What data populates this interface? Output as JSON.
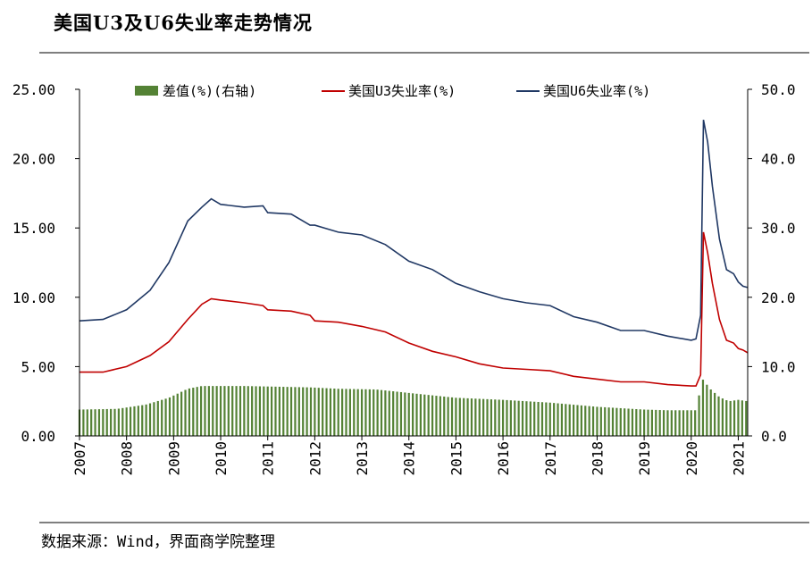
{
  "header": {
    "title": "美国U3及U6失业率走势情况"
  },
  "footer": {
    "source": "数据来源：Wind，界面商学院整理"
  },
  "colors": {
    "bar": "#548235",
    "u3": "#c00000",
    "u6": "#203864",
    "axis": "#000000",
    "rule": "#7f7f7f"
  },
  "chart_data": {
    "type": "line+bar",
    "x_ticks": [
      "2007",
      "2008",
      "2009",
      "2010",
      "2011",
      "2012",
      "2013",
      "2014",
      "2015",
      "2016",
      "2017",
      "2018",
      "2019",
      "2020",
      "2021"
    ],
    "x_range": [
      2007.0,
      2021.2
    ],
    "left_axis": {
      "ylim": [
        0,
        25
      ],
      "tick_labels": [
        "0.00",
        "5.00",
        "10.00",
        "15.00",
        "20.00",
        "25.00"
      ]
    },
    "right_axis": {
      "ylim": [
        0,
        50
      ],
      "tick_labels": [
        "0.0",
        "10.0",
        "20.0",
        "30.0",
        "40.0",
        "50.0"
      ]
    },
    "legend": {
      "bar_label": "差值(%)(右轴)",
      "u3_label": "美国U3失业率(%)",
      "u6_label": "美国U6失业率(%)"
    },
    "u3_series": {
      "name": "美国U3失业率(%)",
      "axis": "left",
      "points": [
        [
          2007.0,
          4.6
        ],
        [
          2007.5,
          4.6
        ],
        [
          2008.0,
          5.0
        ],
        [
          2008.5,
          5.8
        ],
        [
          2008.9,
          6.8
        ],
        [
          2009.3,
          8.4
        ],
        [
          2009.6,
          9.5
        ],
        [
          2009.8,
          9.9
        ],
        [
          2010.0,
          9.8
        ],
        [
          2010.5,
          9.6
        ],
        [
          2010.9,
          9.4
        ],
        [
          2011.0,
          9.1
        ],
        [
          2011.5,
          9.0
        ],
        [
          2011.9,
          8.7
        ],
        [
          2012.0,
          8.3
        ],
        [
          2012.5,
          8.2
        ],
        [
          2013.0,
          7.9
        ],
        [
          2013.5,
          7.5
        ],
        [
          2014.0,
          6.7
        ],
        [
          2014.5,
          6.1
        ],
        [
          2015.0,
          5.7
        ],
        [
          2015.5,
          5.2
        ],
        [
          2016.0,
          4.9
        ],
        [
          2016.5,
          4.8
        ],
        [
          2017.0,
          4.7
        ],
        [
          2017.5,
          4.3
        ],
        [
          2018.0,
          4.1
        ],
        [
          2018.5,
          3.9
        ],
        [
          2019.0,
          3.9
        ],
        [
          2019.5,
          3.7
        ],
        [
          2020.0,
          3.6
        ],
        [
          2020.1,
          3.6
        ],
        [
          2020.2,
          4.4
        ],
        [
          2020.26,
          14.7
        ],
        [
          2020.35,
          13.2
        ],
        [
          2020.45,
          11.0
        ],
        [
          2020.6,
          8.4
        ],
        [
          2020.75,
          6.9
        ],
        [
          2020.9,
          6.7
        ],
        [
          2021.0,
          6.3
        ],
        [
          2021.1,
          6.2
        ],
        [
          2021.2,
          6.0
        ]
      ]
    },
    "u6_series": {
      "name": "美国U6失业率(%)",
      "axis": "left",
      "points": [
        [
          2007.0,
          8.3
        ],
        [
          2007.5,
          8.4
        ],
        [
          2008.0,
          9.1
        ],
        [
          2008.5,
          10.5
        ],
        [
          2008.9,
          12.5
        ],
        [
          2009.3,
          15.5
        ],
        [
          2009.6,
          16.5
        ],
        [
          2009.8,
          17.1
        ],
        [
          2010.0,
          16.7
        ],
        [
          2010.5,
          16.5
        ],
        [
          2010.9,
          16.6
        ],
        [
          2011.0,
          16.1
        ],
        [
          2011.5,
          16.0
        ],
        [
          2011.9,
          15.2
        ],
        [
          2012.0,
          15.2
        ],
        [
          2012.5,
          14.7
        ],
        [
          2013.0,
          14.5
        ],
        [
          2013.5,
          13.8
        ],
        [
          2014.0,
          12.6
        ],
        [
          2014.5,
          12.0
        ],
        [
          2015.0,
          11.0
        ],
        [
          2015.5,
          10.4
        ],
        [
          2016.0,
          9.9
        ],
        [
          2016.5,
          9.6
        ],
        [
          2017.0,
          9.4
        ],
        [
          2017.5,
          8.6
        ],
        [
          2018.0,
          8.2
        ],
        [
          2018.5,
          7.6
        ],
        [
          2019.0,
          7.6
        ],
        [
          2019.5,
          7.2
        ],
        [
          2020.0,
          6.9
        ],
        [
          2020.1,
          7.0
        ],
        [
          2020.2,
          8.7
        ],
        [
          2020.26,
          22.8
        ],
        [
          2020.35,
          21.2
        ],
        [
          2020.45,
          18.0
        ],
        [
          2020.6,
          14.2
        ],
        [
          2020.75,
          12.0
        ],
        [
          2020.9,
          11.7
        ],
        [
          2021.0,
          11.1
        ],
        [
          2021.1,
          10.8
        ],
        [
          2021.2,
          10.7
        ]
      ]
    },
    "diff_series": {
      "name": "差值(%)(右轴)",
      "axis": "right",
      "points": [
        [
          2007.0,
          3.8
        ],
        [
          2007.8,
          3.9
        ],
        [
          2008.4,
          4.5
        ],
        [
          2008.9,
          5.5
        ],
        [
          2009.3,
          6.8
        ],
        [
          2009.6,
          7.2
        ],
        [
          2010.5,
          7.2
        ],
        [
          2011.2,
          7.1
        ],
        [
          2011.9,
          7.0
        ],
        [
          2012.5,
          6.8
        ],
        [
          2013.3,
          6.7
        ],
        [
          2014.0,
          6.2
        ],
        [
          2015.0,
          5.5
        ],
        [
          2016.0,
          5.2
        ],
        [
          2017.0,
          4.8
        ],
        [
          2018.0,
          4.2
        ],
        [
          2019.0,
          3.8
        ],
        [
          2019.5,
          3.7
        ],
        [
          2020.1,
          3.7
        ],
        [
          2020.24,
          8.2
        ],
        [
          2020.4,
          6.8
        ],
        [
          2020.6,
          5.6
        ],
        [
          2020.8,
          5.0
        ],
        [
          2021.0,
          5.2
        ],
        [
          2021.2,
          5.0
        ]
      ]
    }
  }
}
